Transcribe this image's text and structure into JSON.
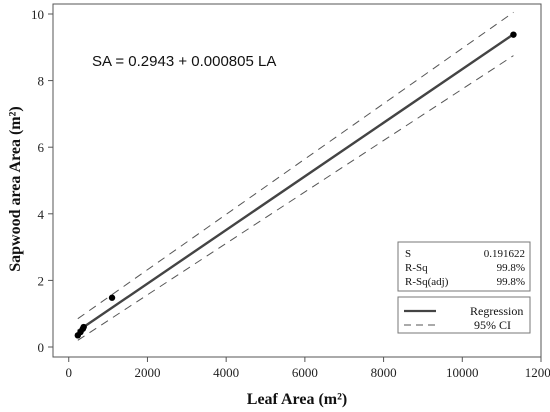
{
  "chart_data": {
    "type": "scatter",
    "equation": "SA = 0.2943 + 0.000805 LA",
    "xlabel": "Leaf Area (m²)",
    "ylabel": "Sapwood area Area (m²)",
    "xlim": [
      -400,
      12000
    ],
    "ylim": [
      -0.3,
      10.3
    ],
    "x_ticks": [
      0,
      2000,
      4000,
      6000,
      8000,
      10000,
      12000
    ],
    "y_ticks": [
      0,
      2,
      4,
      6,
      8,
      10
    ],
    "grid": false,
    "points": [
      {
        "x": 230,
        "y": 0.35
      },
      {
        "x": 300,
        "y": 0.45
      },
      {
        "x": 360,
        "y": 0.55
      },
      {
        "x": 380,
        "y": 0.6
      },
      {
        "x": 1100,
        "y": 1.48
      },
      {
        "x": 11300,
        "y": 9.38
      }
    ],
    "regression": {
      "intercept": 0.2943,
      "slope": 0.000805,
      "x_range": [
        230,
        11300
      ]
    },
    "ci_band": {
      "x_range": [
        230,
        11300
      ],
      "upper_at_ends": [
        0.85,
        10.05
      ],
      "lower_at_ends": [
        0.2,
        8.75
      ]
    },
    "stats": [
      {
        "label": "S",
        "value": "0.191622"
      },
      {
        "label": "R-Sq",
        "value": "99.8%"
      },
      {
        "label": "R-Sq(adj)",
        "value": "99.8%"
      }
    ],
    "legend": [
      {
        "name": "Regression",
        "style": "solid"
      },
      {
        "name": "95% CI",
        "style": "dashed"
      }
    ],
    "legend_placement": "bottom-right",
    "colors": {
      "regression": "#444444",
      "ci": "#555555",
      "points": "#000000",
      "axis": "#333333"
    }
  }
}
